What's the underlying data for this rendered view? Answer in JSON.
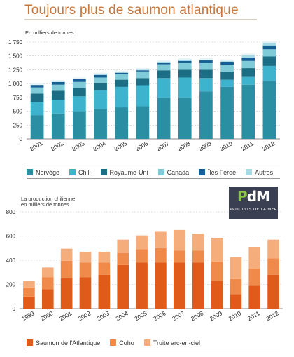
{
  "page_title": "Toujours plus de saumon atlantique",
  "logo": {
    "text_main": "PdM",
    "text_sub": "PRODUITS DE LA MER"
  },
  "chart_data": [
    {
      "type": "bar",
      "stacked": true,
      "ylabel": "En milliers de tonnes",
      "ylim": [
        0,
        1750
      ],
      "yticks": [
        "0",
        "250",
        "500",
        "750",
        "1 000",
        "1 250",
        "1 500",
        "1 750"
      ],
      "categories": [
        "2001",
        "2002",
        "2003",
        "2004",
        "2005",
        "2006",
        "2007",
        "2008",
        "2009",
        "2010",
        "2011",
        "2012"
      ],
      "grid": true,
      "legend_position": "bottom",
      "series": [
        {
          "name": "Norvège",
          "color": "#2b8fa3",
          "values": [
            430,
            460,
            500,
            540,
            570,
            590,
            740,
            740,
            860,
            940,
            980,
            1050
          ]
        },
        {
          "name": "Chili",
          "color": "#3eb3cd",
          "values": [
            240,
            250,
            270,
            340,
            370,
            380,
            360,
            370,
            240,
            130,
            140,
            270
          ]
        },
        {
          "name": "Royaume-Uni",
          "color": "#1b6e84",
          "values": [
            150,
            160,
            150,
            130,
            130,
            130,
            140,
            140,
            150,
            150,
            160,
            170
          ]
        },
        {
          "name": "Canada",
          "color": "#7fcbd8",
          "values": [
            110,
            110,
            110,
            100,
            100,
            120,
            110,
            120,
            120,
            120,
            130,
            130
          ]
        },
        {
          "name": "Îles Féroé",
          "color": "#155f94",
          "values": [
            45,
            50,
            50,
            45,
            25,
            20,
            20,
            40,
            50,
            45,
            60,
            70
          ]
        },
        {
          "name": "Autres",
          "color": "#a6dbe6",
          "values": [
            20,
            20,
            20,
            30,
            30,
            30,
            40,
            40,
            30,
            40,
            60,
            60
          ]
        }
      ]
    },
    {
      "type": "bar",
      "stacked": true,
      "ylabel": "La production chilienne en milliers de tonnes",
      "ylabel_lines": [
        "La production chilienne",
        "en milliers de tonnes"
      ],
      "ylim": [
        0,
        800
      ],
      "yticks": [
        "0",
        "200",
        "400",
        "600",
        "800"
      ],
      "categories": [
        "1999",
        "2000",
        "2001",
        "2002",
        "2003",
        "2004",
        "2005",
        "2006",
        "2007",
        "2008",
        "2009",
        "2010",
        "2011",
        "2012"
      ],
      "grid": true,
      "legend_position": "bottom",
      "series": [
        {
          "name": "Saumon de l'Atlantique",
          "color": "#e05a1a",
          "values": [
            100,
            160,
            250,
            260,
            280,
            360,
            380,
            380,
            380,
            380,
            230,
            120,
            190,
            280
          ]
        },
        {
          "name": "Coho",
          "color": "#f08a4a",
          "values": [
            75,
            100,
            145,
            120,
            100,
            100,
            110,
            120,
            100,
            100,
            160,
            125,
            140,
            135
          ]
        },
        {
          "name": "Truite arc-en-ciel",
          "color": "#f6ad7c",
          "values": [
            55,
            80,
            100,
            90,
            90,
            110,
            115,
            135,
            170,
            140,
            195,
            180,
            180,
            155
          ]
        }
      ]
    }
  ]
}
